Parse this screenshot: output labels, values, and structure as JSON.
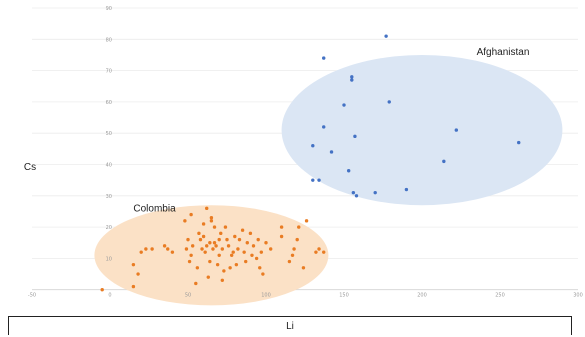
{
  "chart_data": {
    "type": "scatter",
    "title": "",
    "xlabel": "Li",
    "ylabel": "Cs",
    "xlim": [
      -50,
      300
    ],
    "ylim": [
      -10,
      90
    ],
    "x_ticks": [
      -50,
      0,
      50,
      100,
      150,
      200,
      250,
      300
    ],
    "y_ticks": [
      -10,
      10,
      20,
      30,
      40,
      50,
      60,
      70,
      80,
      90
    ],
    "grid": "horizontal",
    "legend": "none",
    "groups": [
      {
        "label": "Afghanistan",
        "color": "#4472c4",
        "ellipse_color": "#dbe6f4",
        "ellipse": {
          "cx": 200,
          "cy": 51,
          "rx": 90,
          "ry": 24
        },
        "points": [
          [
            130,
            35
          ],
          [
            134,
            35
          ],
          [
            130,
            46
          ],
          [
            137,
            52
          ],
          [
            137,
            74
          ],
          [
            142,
            44
          ],
          [
            150,
            59
          ],
          [
            153,
            38
          ],
          [
            155,
            68
          ],
          [
            155,
            67
          ],
          [
            156,
            31
          ],
          [
            157,
            49
          ],
          [
            158,
            30
          ],
          [
            170,
            31
          ],
          [
            177,
            81
          ],
          [
            179,
            60
          ],
          [
            190,
            32
          ],
          [
            214,
            41
          ],
          [
            222,
            51
          ],
          [
            262,
            47
          ]
        ]
      },
      {
        "label": "Colombia",
        "color": "#e97c23",
        "ellipse_color": "#fbe1c6",
        "ellipse": {
          "cx": 65,
          "cy": 11,
          "rx": 75,
          "ry": 16
        },
        "points": [
          [
            -5,
            0
          ],
          [
            15,
            1
          ],
          [
            15,
            8
          ],
          [
            18,
            5
          ],
          [
            20,
            12
          ],
          [
            23,
            13
          ],
          [
            27,
            13
          ],
          [
            35,
            14
          ],
          [
            37,
            13
          ],
          [
            40,
            12
          ],
          [
            48,
            22
          ],
          [
            49,
            13
          ],
          [
            50,
            16
          ],
          [
            51,
            9
          ],
          [
            52,
            24
          ],
          [
            52,
            11
          ],
          [
            53,
            14
          ],
          [
            55,
            2
          ],
          [
            56,
            7
          ],
          [
            57,
            18
          ],
          [
            58,
            16
          ],
          [
            59,
            13
          ],
          [
            60,
            17
          ],
          [
            60,
            21
          ],
          [
            61,
            12
          ],
          [
            62,
            14
          ],
          [
            62,
            26
          ],
          [
            63,
            4
          ],
          [
            64,
            15
          ],
          [
            64,
            9
          ],
          [
            65,
            22
          ],
          [
            65,
            23
          ],
          [
            66,
            13
          ],
          [
            67,
            15
          ],
          [
            67,
            20
          ],
          [
            68,
            14
          ],
          [
            69,
            8
          ],
          [
            70,
            16
          ],
          [
            70,
            11
          ],
          [
            71,
            18
          ],
          [
            72,
            3
          ],
          [
            72,
            13
          ],
          [
            73,
            6
          ],
          [
            74,
            20
          ],
          [
            75,
            16
          ],
          [
            76,
            14
          ],
          [
            77,
            7
          ],
          [
            78,
            11
          ],
          [
            79,
            12
          ],
          [
            80,
            17
          ],
          [
            81,
            8
          ],
          [
            82,
            13
          ],
          [
            83,
            16
          ],
          [
            85,
            19
          ],
          [
            86,
            12
          ],
          [
            87,
            9
          ],
          [
            88,
            15
          ],
          [
            90,
            18
          ],
          [
            91,
            11
          ],
          [
            92,
            14
          ],
          [
            94,
            10
          ],
          [
            95,
            16
          ],
          [
            96,
            7
          ],
          [
            97,
            12
          ],
          [
            98,
            5
          ],
          [
            100,
            15
          ],
          [
            103,
            13
          ],
          [
            110,
            17
          ],
          [
            110,
            20
          ],
          [
            115,
            9
          ],
          [
            117,
            11
          ],
          [
            118,
            13
          ],
          [
            120,
            16
          ],
          [
            121,
            20
          ],
          [
            124,
            7
          ],
          [
            126,
            22
          ],
          [
            132,
            12
          ],
          [
            134,
            13
          ],
          [
            137,
            12
          ]
        ]
      }
    ]
  }
}
